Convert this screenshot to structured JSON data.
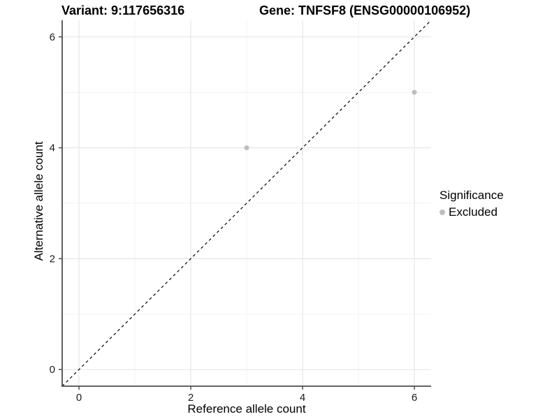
{
  "chart_data": {
    "type": "scatter",
    "title_left": "Variant: 9:117656316",
    "title_right": "Gene: TNFSF8 (ENSG00000106952)",
    "xlabel": "Reference allele count",
    "ylabel": "Alternative allele count",
    "xlim": [
      -0.3,
      6.3
    ],
    "ylim": [
      -0.3,
      6.3
    ],
    "xticks": [
      0,
      2,
      4,
      6
    ],
    "yticks": [
      0,
      2,
      4,
      6
    ],
    "minor_grid": [
      1,
      3,
      5
    ],
    "grid": "on",
    "legend_position": "right",
    "series": [
      {
        "name": "Excluded",
        "marker": "circle",
        "color": "#bebebe",
        "points": [
          [
            3,
            4
          ],
          [
            6,
            5
          ]
        ]
      }
    ],
    "reference_line": {
      "slope": 1,
      "intercept": 0,
      "style": "dashed",
      "color": "#000000"
    }
  },
  "legend": {
    "title": "Significance",
    "items": [
      {
        "label": "Excluded",
        "color": "#bebebe"
      }
    ]
  },
  "style": {
    "background": "#ffffff",
    "axis_line_color": "#4d4d4d",
    "tick_label_color": "#1a1a1a",
    "major_grid_color": "#e6e6e6",
    "minor_grid_color": "#f2f2f2",
    "point_color": "#bebebe"
  }
}
